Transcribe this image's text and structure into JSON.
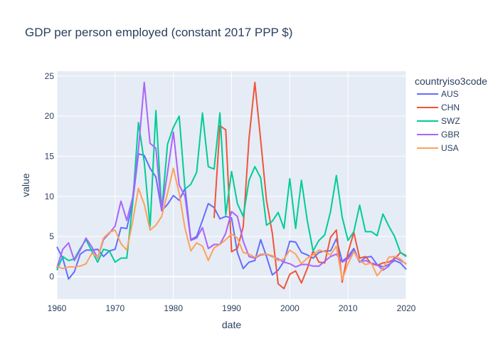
{
  "chart_data": {
    "type": "line",
    "title": "GDP per person employed (constant 2017 PPP $)",
    "xlabel": "date",
    "ylabel": "value",
    "xlim": [
      1960,
      2020
    ],
    "ylim": [
      -2.8,
      25.6
    ],
    "xticks": [
      1960,
      1970,
      1980,
      1990,
      2000,
      2010,
      2020
    ],
    "yticks": [
      0,
      5,
      10,
      15,
      20,
      25
    ],
    "grid": true,
    "legend": {
      "title": "countryiso3code",
      "position": "right"
    },
    "series": [
      {
        "name": "AUS",
        "color": "#636efa",
        "x": [
          1960,
          1961,
          1962,
          1963,
          1964,
          1965,
          1966,
          1967,
          1968,
          1969,
          1970,
          1971,
          1972,
          1973,
          1974,
          1975,
          1976,
          1977,
          1978,
          1979,
          1980,
          1981,
          1982,
          1983,
          1984,
          1985,
          1986,
          1987,
          1988,
          1989,
          1990,
          1991,
          1992,
          1993,
          1994,
          1995,
          1996,
          1997,
          1998,
          1999,
          2000,
          2001,
          2002,
          2003,
          2004,
          2005,
          2006,
          2007,
          2008,
          2009,
          2010,
          2011,
          2012,
          2013,
          2014,
          2015,
          2016,
          2017,
          2018,
          2019,
          2020
        ],
        "y": [
          3.7,
          2.3,
          -0.3,
          0.6,
          2.8,
          3.3,
          3.3,
          3.4,
          2.5,
          3.2,
          3.4,
          6.1,
          6.0,
          9.2,
          15.3,
          15.1,
          13.5,
          12.4,
          8.2,
          9.0,
          10.1,
          9.5,
          11.0,
          4.6,
          5.0,
          7.0,
          9.1,
          8.6,
          7.2,
          7.5,
          7.3,
          3.0,
          1.0,
          1.8,
          2.0,
          4.6,
          2.5,
          0.2,
          0.8,
          1.9,
          4.4,
          4.3,
          3.0,
          2.7,
          2.3,
          3.0,
          3.2,
          3.2,
          4.7,
          1.9,
          2.5,
          3.5,
          1.8,
          2.4,
          2.5,
          1.5,
          1.2,
          1.5,
          2.0,
          1.7,
          0.9
        ]
      },
      {
        "name": "CHN",
        "color": "#ef553b",
        "x": [
          1987,
          1988,
          1989,
          1990,
          1991,
          1992,
          1993,
          1994,
          1995,
          1996,
          1997,
          1998,
          1999,
          2000,
          2001,
          2002,
          2003,
          2004,
          2005,
          2006,
          2007,
          2008,
          2009,
          2010,
          2011,
          2012,
          2013,
          2014,
          2015,
          2016,
          2017,
          2018,
          2019,
          2020
        ],
        "y": [
          7.3,
          18.8,
          18.3,
          3.1,
          3.5,
          6.2,
          17.2,
          24.2,
          17.0,
          9.5,
          5.4,
          -0.9,
          -1.5,
          0.3,
          0.7,
          -0.8,
          1.0,
          3.2,
          1.8,
          1.7,
          4.9,
          5.8,
          -0.7,
          3.0,
          5.5,
          2.3,
          2.5,
          1.6,
          1.4,
          1.7,
          1.8,
          2.2,
          3.0,
          2.6
        ]
      },
      {
        "name": "SWZ",
        "color": "#00cc96",
        "x": [
          1960,
          1961,
          1962,
          1963,
          1964,
          1965,
          1966,
          1967,
          1968,
          1969,
          1970,
          1971,
          1972,
          1973,
          1974,
          1975,
          1976,
          1977,
          1978,
          1979,
          1980,
          1981,
          1982,
          1983,
          1984,
          1985,
          1986,
          1987,
          1988,
          1989,
          1990,
          1991,
          1992,
          1993,
          1994,
          1995,
          1996,
          1997,
          1998,
          1999,
          2000,
          2001,
          2002,
          2003,
          2004,
          2005,
          2006,
          2007,
          2008,
          2009,
          2010,
          2011,
          2012,
          2013,
          2014,
          2015,
          2016,
          2017,
          2018,
          2019,
          2020
        ],
        "y": [
          0.8,
          2.5,
          2.0,
          2.2,
          3.5,
          4.6,
          3.2,
          1.8,
          3.4,
          3.2,
          1.8,
          2.3,
          2.3,
          9.0,
          19.2,
          14.3,
          6.2,
          20.7,
          8.2,
          16.5,
          18.6,
          20.0,
          10.9,
          11.5,
          13.0,
          20.4,
          13.7,
          13.4,
          20.4,
          7.7,
          13.1,
          9.1,
          7.5,
          12.0,
          13.7,
          12.3,
          6.4,
          6.9,
          8.0,
          6.0,
          12.2,
          6.0,
          12.0,
          7.0,
          3.2,
          4.5,
          5.2,
          8.1,
          12.6,
          7.4,
          4.5,
          5.6,
          8.9,
          5.6,
          5.6,
          5.1,
          7.8,
          6.3,
          5.0,
          3.0,
          2.5
        ]
      },
      {
        "name": "GBR",
        "color": "#ab63fa",
        "x": [
          1960,
          1961,
          1962,
          1963,
          1964,
          1965,
          1966,
          1967,
          1968,
          1969,
          1970,
          1971,
          1972,
          1973,
          1974,
          1975,
          1976,
          1977,
          1978,
          1979,
          1980,
          1981,
          1982,
          1983,
          1984,
          1985,
          1986,
          1987,
          1988,
          1989,
          1990,
          1991,
          1992,
          1993,
          1994,
          1995,
          1996,
          1997,
          1998,
          1999,
          2000,
          2001,
          2002,
          2003,
          2004,
          2005,
          2006,
          2007,
          2008,
          2009,
          2010,
          2011,
          2012,
          2013,
          2014,
          2015,
          2016,
          2017,
          2018,
          2019,
          2020
        ],
        "y": [
          1.1,
          3.4,
          4.2,
          2.0,
          3.3,
          4.8,
          3.7,
          2.3,
          4.6,
          5.4,
          6.3,
          9.4,
          7.0,
          9.8,
          15.8,
          24.2,
          16.6,
          16.0,
          8.2,
          13.0,
          18.0,
          11.4,
          10.0,
          4.5,
          4.8,
          6.1,
          3.5,
          4.0,
          4.0,
          5.4,
          8.1,
          7.5,
          4.4,
          2.5,
          2.3,
          2.7,
          2.8,
          2.5,
          2.2,
          1.8,
          1.6,
          1.2,
          1.5,
          1.5,
          1.3,
          1.3,
          1.9,
          2.5,
          2.8,
          1.8,
          2.2,
          3.2,
          1.8,
          2.0,
          1.7,
          1.5,
          0.8,
          1.3,
          2.4,
          2.0,
          1.6
        ]
      },
      {
        "name": "USA",
        "color": "#ffa15a",
        "x": [
          1960,
          1961,
          1962,
          1963,
          1964,
          1965,
          1966,
          1967,
          1968,
          1969,
          1970,
          1971,
          1972,
          1973,
          1974,
          1975,
          1976,
          1977,
          1978,
          1979,
          1980,
          1981,
          1982,
          1983,
          1984,
          1985,
          1986,
          1987,
          1988,
          1989,
          1990,
          1991,
          1992,
          1993,
          1994,
          1995,
          1996,
          1997,
          1998,
          1999,
          2000,
          2001,
          2002,
          2003,
          2004,
          2005,
          2006,
          2007,
          2008,
          2009,
          2010,
          2011,
          2012,
          2013,
          2014,
          2015,
          2016,
          2017,
          2018,
          2019,
          2020
        ],
        "y": [
          1.3,
          1.0,
          1.2,
          1.2,
          1.3,
          1.6,
          2.9,
          2.4,
          4.8,
          5.5,
          5.8,
          4.1,
          3.3,
          6.8,
          11.0,
          9.0,
          5.8,
          6.4,
          7.5,
          10.4,
          13.5,
          10.4,
          6.0,
          3.2,
          4.2,
          3.8,
          2.0,
          3.6,
          4.0,
          4.6,
          5.3,
          4.8,
          3.0,
          2.8,
          2.4,
          2.8,
          2.8,
          2.6,
          2.0,
          2.2,
          3.3,
          2.8,
          1.6,
          2.3,
          2.7,
          3.3,
          3.1,
          2.7,
          3.8,
          -0.4,
          1.6,
          3.1,
          2.0,
          1.5,
          1.7,
          0.1,
          1.0,
          2.4,
          2.5,
          2.2,
          1.5
        ]
      }
    ]
  }
}
